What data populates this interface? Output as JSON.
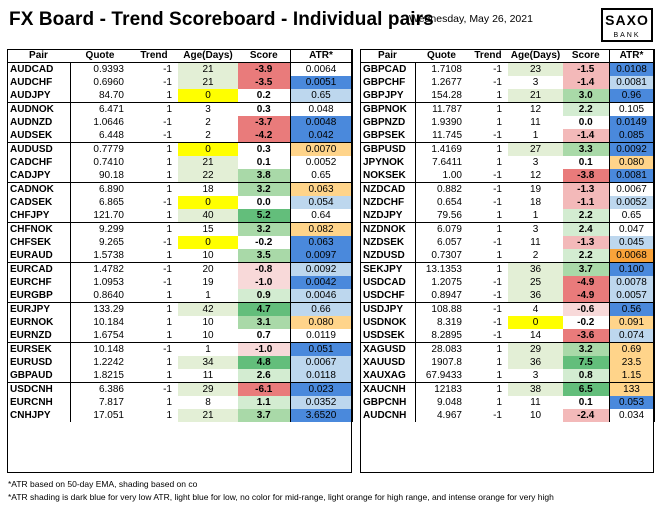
{
  "header": {
    "title": "FX Board - Trend Scoreboard - Individual pairs",
    "date": "Wednesday, May 26, 2021",
    "logo_top": "SAXO",
    "logo_bottom": "BANK"
  },
  "columns": [
    "Pair",
    "Quote",
    "Trend",
    "Age(Days)",
    "Score",
    "ATR*"
  ],
  "colors": {
    "age_green": "#e3efd6",
    "age_yellow": "#ffff00",
    "score_red_strong": "#e97b7b",
    "score_red": "#f3b9b9",
    "score_red_light": "#f8d9d9",
    "score_green_strong": "#63be7b",
    "score_green": "#a9d9a8",
    "score_green_light": "#d3ecd1",
    "atr_dark_blue": "#4a89dc",
    "atr_light_blue": "#bdd7ee",
    "atr_light_orange": "#ffd48a",
    "atr_intense_orange": "#f9a33a",
    "atr_none": "#ffffff"
  },
  "left_table": {
    "groups": [
      [
        {
          "pair": "AUDCAD",
          "quote": "0.9393",
          "trend": "-1",
          "age": "21",
          "age_color": "green",
          "score": "-3.9",
          "score_color": "red_strong",
          "atr": "0.0064",
          "atr_color": "none"
        },
        {
          "pair": "AUDCHF",
          "quote": "0.6960",
          "trend": "-1",
          "age": "21",
          "age_color": "green",
          "score": "-3.5",
          "score_color": "red_strong",
          "atr": "0.0051",
          "atr_color": "dark_blue"
        },
        {
          "pair": "AUDJPY",
          "quote": "84.70",
          "trend": "1",
          "age": "0",
          "age_color": "yellow",
          "score": "0.2",
          "score_color": "none",
          "atr": "0.65",
          "atr_color": "light_blue"
        }
      ],
      [
        {
          "pair": "AUDNOK",
          "quote": "6.471",
          "trend": "1",
          "age": "3",
          "age_color": "none",
          "score": "0.3",
          "score_color": "none",
          "atr": "0.048",
          "atr_color": "none"
        },
        {
          "pair": "AUDNZD",
          "quote": "1.0646",
          "trend": "-1",
          "age": "2",
          "age_color": "none",
          "score": "-3.7",
          "score_color": "red_strong",
          "atr": "0.0048",
          "atr_color": "dark_blue"
        },
        {
          "pair": "AUDSEK",
          "quote": "6.448",
          "trend": "-1",
          "age": "2",
          "age_color": "none",
          "score": "-4.2",
          "score_color": "red_strong",
          "atr": "0.042",
          "atr_color": "dark_blue"
        }
      ],
      [
        {
          "pair": "AUDUSD",
          "quote": "0.7779",
          "trend": "1",
          "age": "0",
          "age_color": "yellow",
          "score": "0.3",
          "score_color": "none",
          "atr": "0.0070",
          "atr_color": "light_orange"
        },
        {
          "pair": "CADCHF",
          "quote": "0.7410",
          "trend": "1",
          "age": "21",
          "age_color": "green",
          "score": "0.1",
          "score_color": "none",
          "atr": "0.0052",
          "atr_color": "none"
        },
        {
          "pair": "CADJPY",
          "quote": "90.18",
          "trend": "1",
          "age": "22",
          "age_color": "green",
          "score": "3.8",
          "score_color": "green",
          "atr": "0.65",
          "atr_color": "none"
        }
      ],
      [
        {
          "pair": "CADNOK",
          "quote": "6.890",
          "trend": "1",
          "age": "18",
          "age_color": "none",
          "score": "3.2",
          "score_color": "green",
          "atr": "0.063",
          "atr_color": "light_orange"
        },
        {
          "pair": "CADSEK",
          "quote": "6.865",
          "trend": "-1",
          "age": "0",
          "age_color": "yellow",
          "score": "0.0",
          "score_color": "none",
          "atr": "0.054",
          "atr_color": "light_blue"
        },
        {
          "pair": "CHFJPY",
          "quote": "121.70",
          "trend": "1",
          "age": "40",
          "age_color": "green",
          "score": "5.2",
          "score_color": "green_strong",
          "atr": "0.64",
          "atr_color": "none"
        }
      ],
      [
        {
          "pair": "CHFNOK",
          "quote": "9.299",
          "trend": "1",
          "age": "15",
          "age_color": "none",
          "score": "3.2",
          "score_color": "green",
          "atr": "0.082",
          "atr_color": "light_orange"
        },
        {
          "pair": "CHFSEK",
          "quote": "9.265",
          "trend": "-1",
          "age": "0",
          "age_color": "yellow",
          "score": "-0.2",
          "score_color": "none",
          "atr": "0.063",
          "atr_color": "dark_blue"
        },
        {
          "pair": "EURAUD",
          "quote": "1.5738",
          "trend": "1",
          "age": "10",
          "age_color": "none",
          "score": "3.5",
          "score_color": "green",
          "atr": "0.0097",
          "atr_color": "dark_blue"
        }
      ],
      [
        {
          "pair": "EURCAD",
          "quote": "1.4782",
          "trend": "-1",
          "age": "20",
          "age_color": "none",
          "score": "-0.8",
          "score_color": "red_light",
          "atr": "0.0092",
          "atr_color": "light_blue"
        },
        {
          "pair": "EURCHF",
          "quote": "1.0953",
          "trend": "-1",
          "age": "19",
          "age_color": "none",
          "score": "-1.0",
          "score_color": "red_light",
          "atr": "0.0042",
          "atr_color": "dark_blue"
        },
        {
          "pair": "EURGBP",
          "quote": "0.8640",
          "trend": "1",
          "age": "1",
          "age_color": "none",
          "score": "0.9",
          "score_color": "green_light",
          "atr": "0.0046",
          "atr_color": "light_blue"
        }
      ],
      [
        {
          "pair": "EURJPY",
          "quote": "133.29",
          "trend": "1",
          "age": "42",
          "age_color": "green",
          "score": "4.7",
          "score_color": "green_strong",
          "atr": "0.66",
          "atr_color": "light_blue"
        },
        {
          "pair": "EURNOK",
          "quote": "10.184",
          "trend": "1",
          "age": "10",
          "age_color": "none",
          "score": "3.1",
          "score_color": "green",
          "atr": "0.080",
          "atr_color": "light_orange"
        },
        {
          "pair": "EURNZD",
          "quote": "1.6754",
          "trend": "1",
          "age": "10",
          "age_color": "none",
          "score": "0.7",
          "score_color": "none",
          "atr": "0.0119",
          "atr_color": "none"
        }
      ],
      [
        {
          "pair": "EURSEK",
          "quote": "10.148",
          "trend": "-1",
          "age": "1",
          "age_color": "none",
          "score": "-1.0",
          "score_color": "red_light",
          "atr": "0.051",
          "atr_color": "dark_blue"
        },
        {
          "pair": "EURUSD",
          "quote": "1.2242",
          "trend": "1",
          "age": "34",
          "age_color": "green",
          "score": "4.8",
          "score_color": "green_strong",
          "atr": "0.0067",
          "atr_color": "light_blue"
        },
        {
          "pair": "GBPAUD",
          "quote": "1.8215",
          "trend": "1",
          "age": "11",
          "age_color": "none",
          "score": "2.6",
          "score_color": "green_light",
          "atr": "0.0118",
          "atr_color": "light_blue"
        }
      ],
      [
        {
          "pair": "USDCNH",
          "quote": "6.386",
          "trend": "-1",
          "age": "29",
          "age_color": "green",
          "score": "-6.1",
          "score_color": "red_strong",
          "atr": "0.023",
          "atr_color": "dark_blue"
        },
        {
          "pair": "EURCNH",
          "quote": "7.817",
          "trend": "1",
          "age": "8",
          "age_color": "none",
          "score": "1.1",
          "score_color": "green_light",
          "atr": "0.0352",
          "atr_color": "light_blue"
        },
        {
          "pair": "CNHJPY",
          "quote": "17.051",
          "trend": "1",
          "age": "21",
          "age_color": "green",
          "score": "3.7",
          "score_color": "green",
          "atr": "3.6520",
          "atr_color": "dark_blue"
        }
      ]
    ]
  },
  "right_table": {
    "groups": [
      [
        {
          "pair": "GBPCAD",
          "quote": "1.7108",
          "trend": "-1",
          "age": "23",
          "age_color": "green",
          "score": "-1.5",
          "score_color": "red",
          "atr": "0.0108",
          "atr_color": "dark_blue"
        },
        {
          "pair": "GBPCHF",
          "quote": "1.2677",
          "trend": "-1",
          "age": "3",
          "age_color": "none",
          "score": "-1.4",
          "score_color": "red",
          "atr": "0.0081",
          "atr_color": "light_blue"
        },
        {
          "pair": "GBPJPY",
          "quote": "154.28",
          "trend": "1",
          "age": "21",
          "age_color": "green",
          "score": "3.0",
          "score_color": "green",
          "atr": "0.96",
          "atr_color": "dark_blue"
        }
      ],
      [
        {
          "pair": "GBPNOK",
          "quote": "11.787",
          "trend": "1",
          "age": "12",
          "age_color": "none",
          "score": "2.2",
          "score_color": "green_light",
          "atr": "0.105",
          "atr_color": "none"
        },
        {
          "pair": "GBPNZD",
          "quote": "1.9390",
          "trend": "1",
          "age": "11",
          "age_color": "none",
          "score": "0.0",
          "score_color": "none",
          "atr": "0.0149",
          "atr_color": "dark_blue"
        },
        {
          "pair": "GBPSEK",
          "quote": "11.745",
          "trend": "-1",
          "age": "1",
          "age_color": "none",
          "score": "-1.4",
          "score_color": "red",
          "atr": "0.085",
          "atr_color": "dark_blue"
        }
      ],
      [
        {
          "pair": "GBPUSD",
          "quote": "1.4169",
          "trend": "1",
          "age": "27",
          "age_color": "green",
          "score": "3.3",
          "score_color": "green",
          "atr": "0.0092",
          "atr_color": "dark_blue"
        },
        {
          "pair": "JPYNOK",
          "quote": "7.6411",
          "trend": "1",
          "age": "3",
          "age_color": "none",
          "score": "0.1",
          "score_color": "none",
          "atr": "0.080",
          "atr_color": "light_orange"
        },
        {
          "pair": "NOKSEK",
          "quote": "1.00",
          "trend": "-1",
          "age": "12",
          "age_color": "none",
          "score": "-3.8",
          "score_color": "red_strong",
          "atr": "0.0081",
          "atr_color": "dark_blue"
        }
      ],
      [
        {
          "pair": "NZDCAD",
          "quote": "0.882",
          "trend": "-1",
          "age": "19",
          "age_color": "none",
          "score": "-1.3",
          "score_color": "red",
          "atr": "0.0067",
          "atr_color": "none"
        },
        {
          "pair": "NZDCHF",
          "quote": "0.654",
          "trend": "-1",
          "age": "18",
          "age_color": "none",
          "score": "-1.1",
          "score_color": "red",
          "atr": "0.0052",
          "atr_color": "light_blue"
        },
        {
          "pair": "NZDJPY",
          "quote": "79.56",
          "trend": "1",
          "age": "1",
          "age_color": "none",
          "score": "2.2",
          "score_color": "green_light",
          "atr": "0.65",
          "atr_color": "none"
        }
      ],
      [
        {
          "pair": "NZDNOK",
          "quote": "6.079",
          "trend": "1",
          "age": "3",
          "age_color": "none",
          "score": "2.4",
          "score_color": "green_light",
          "atr": "0.047",
          "atr_color": "none"
        },
        {
          "pair": "NZDSEK",
          "quote": "6.057",
          "trend": "-1",
          "age": "11",
          "age_color": "none",
          "score": "-1.3",
          "score_color": "red",
          "atr": "0.045",
          "atr_color": "light_blue"
        },
        {
          "pair": "NZDUSD",
          "quote": "0.7307",
          "trend": "1",
          "age": "2",
          "age_color": "none",
          "score": "2.2",
          "score_color": "green_light",
          "atr": "0.0068",
          "atr_color": "intense_orange"
        }
      ],
      [
        {
          "pair": "SEKJPY",
          "quote": "13.1353",
          "trend": "1",
          "age": "36",
          "age_color": "green",
          "score": "3.7",
          "score_color": "green",
          "atr": "0.100",
          "atr_color": "dark_blue"
        },
        {
          "pair": "USDCAD",
          "quote": "1.2075",
          "trend": "-1",
          "age": "25",
          "age_color": "green",
          "score": "-4.9",
          "score_color": "red_strong",
          "atr": "0.0078",
          "atr_color": "light_blue"
        },
        {
          "pair": "USDCHF",
          "quote": "0.8947",
          "trend": "-1",
          "age": "36",
          "age_color": "green",
          "score": "-4.9",
          "score_color": "red_strong",
          "atr": "0.0057",
          "atr_color": "light_blue"
        }
      ],
      [
        {
          "pair": "USDJPY",
          "quote": "108.88",
          "trend": "-1",
          "age": "4",
          "age_color": "none",
          "score": "-0.6",
          "score_color": "red_light",
          "atr": "0.56",
          "atr_color": "dark_blue"
        },
        {
          "pair": "USDNOK",
          "quote": "8.319",
          "trend": "-1",
          "age": "0",
          "age_color": "yellow",
          "score": "-0.2",
          "score_color": "none",
          "atr": "0.091",
          "atr_color": "light_orange"
        },
        {
          "pair": "USDSEK",
          "quote": "8.2895",
          "trend": "-1",
          "age": "14",
          "age_color": "none",
          "score": "-3.6",
          "score_color": "red_strong",
          "atr": "0.074",
          "atr_color": "light_blue"
        }
      ],
      [
        {
          "pair": "XAGUSD",
          "quote": "28.083",
          "trend": "1",
          "age": "29",
          "age_color": "green",
          "score": "3.2",
          "score_color": "green",
          "atr": "0.69",
          "atr_color": "light_orange"
        },
        {
          "pair": "XAUUSD",
          "quote": "1907.8",
          "trend": "1",
          "age": "36",
          "age_color": "green",
          "score": "7.5",
          "score_color": "green_strong",
          "atr": "23.5",
          "atr_color": "light_orange"
        },
        {
          "pair": "XAUXAG",
          "quote": "67.9433",
          "trend": "1",
          "age": "3",
          "age_color": "none",
          "score": "0.8",
          "score_color": "green_light",
          "atr": "1.15",
          "atr_color": "light_orange"
        }
      ],
      [
        {
          "pair": "XAUCNH",
          "quote": "12183",
          "trend": "1",
          "age": "38",
          "age_color": "green",
          "score": "6.5",
          "score_color": "green_strong",
          "atr": "133",
          "atr_color": "light_orange"
        },
        {
          "pair": "GBPCNH",
          "quote": "9.048",
          "trend": "1",
          "age": "11",
          "age_color": "none",
          "score": "0.1",
          "score_color": "none",
          "atr": "0.053",
          "atr_color": "dark_blue"
        },
        {
          "pair": "AUDCNH",
          "quote": "4.967",
          "trend": "-1",
          "age": "10",
          "age_color": "none",
          "score": "-2.4",
          "score_color": "red",
          "atr": "0.034",
          "atr_color": "none"
        }
      ]
    ]
  },
  "footnotes": {
    "note1": "*ATR based on 50-day EMA, shading based on co",
    "note2": "*ATR shading is dark blue for very low ATR, light blue for low, no color for mid-range, light orange for high range, and intense orange for very high"
  }
}
